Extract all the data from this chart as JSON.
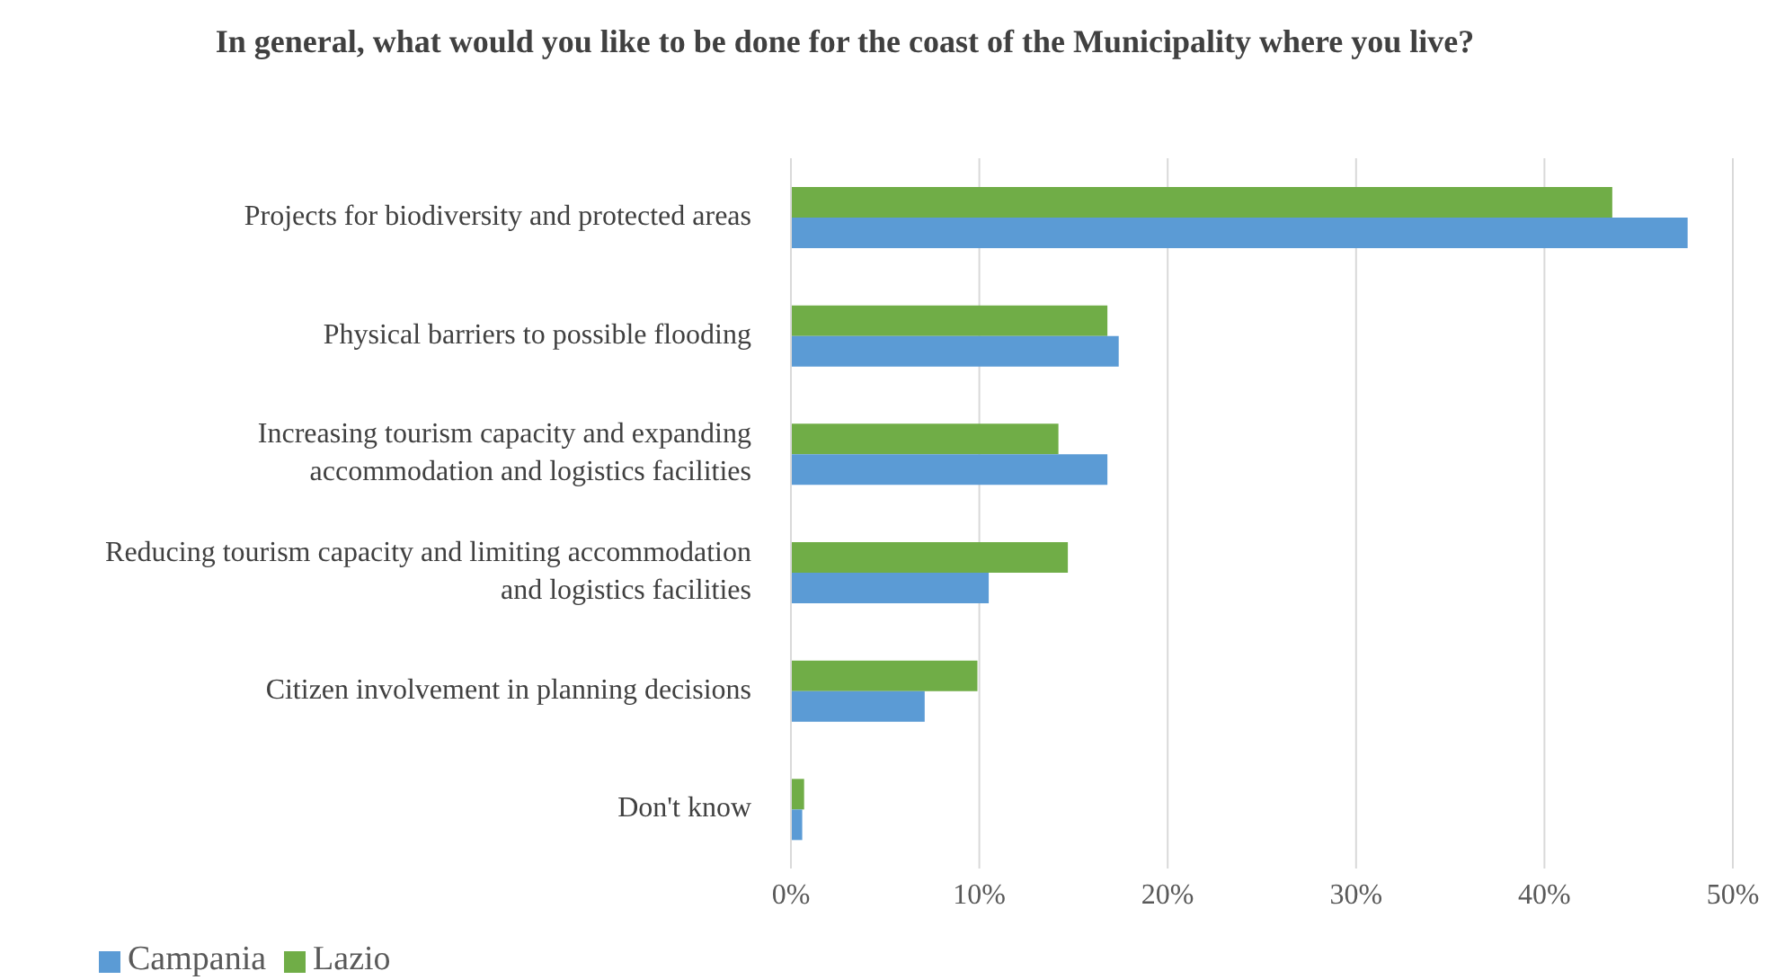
{
  "chart_data": {
    "type": "bar",
    "orientation": "horizontal",
    "title": "In general, what would you like to be done for the coast of the Municipality where you live?",
    "categories": [
      "Projects for biodiversity and protected areas",
      "Physical barriers to possible flooding",
      "Increasing tourism capacity and expanding accommodation and logistics facilities",
      "Reducing tourism capacity and limiting accommodation and logistics facilities",
      "Citizen involvement in planning decisions",
      "Don't know"
    ],
    "series": [
      {
        "name": "Lazio",
        "color": "#70ad47",
        "values": [
          43.6,
          16.8,
          14.2,
          14.7,
          9.9,
          0.7
        ]
      },
      {
        "name": "Campania",
        "color": "#5b9bd5",
        "values": [
          47.6,
          17.4,
          16.8,
          10.5,
          7.1,
          0.6
        ]
      }
    ],
    "xlim": [
      0,
      50
    ],
    "xticks": [
      {
        "value": 0,
        "label": "0%"
      },
      {
        "value": 10,
        "label": "10%"
      },
      {
        "value": 20,
        "label": "20%"
      },
      {
        "value": 30,
        "label": "30%"
      },
      {
        "value": 40,
        "label": "40%"
      },
      {
        "value": 50,
        "label": "50%"
      }
    ],
    "grid": "x",
    "legend": "bottom left"
  }
}
